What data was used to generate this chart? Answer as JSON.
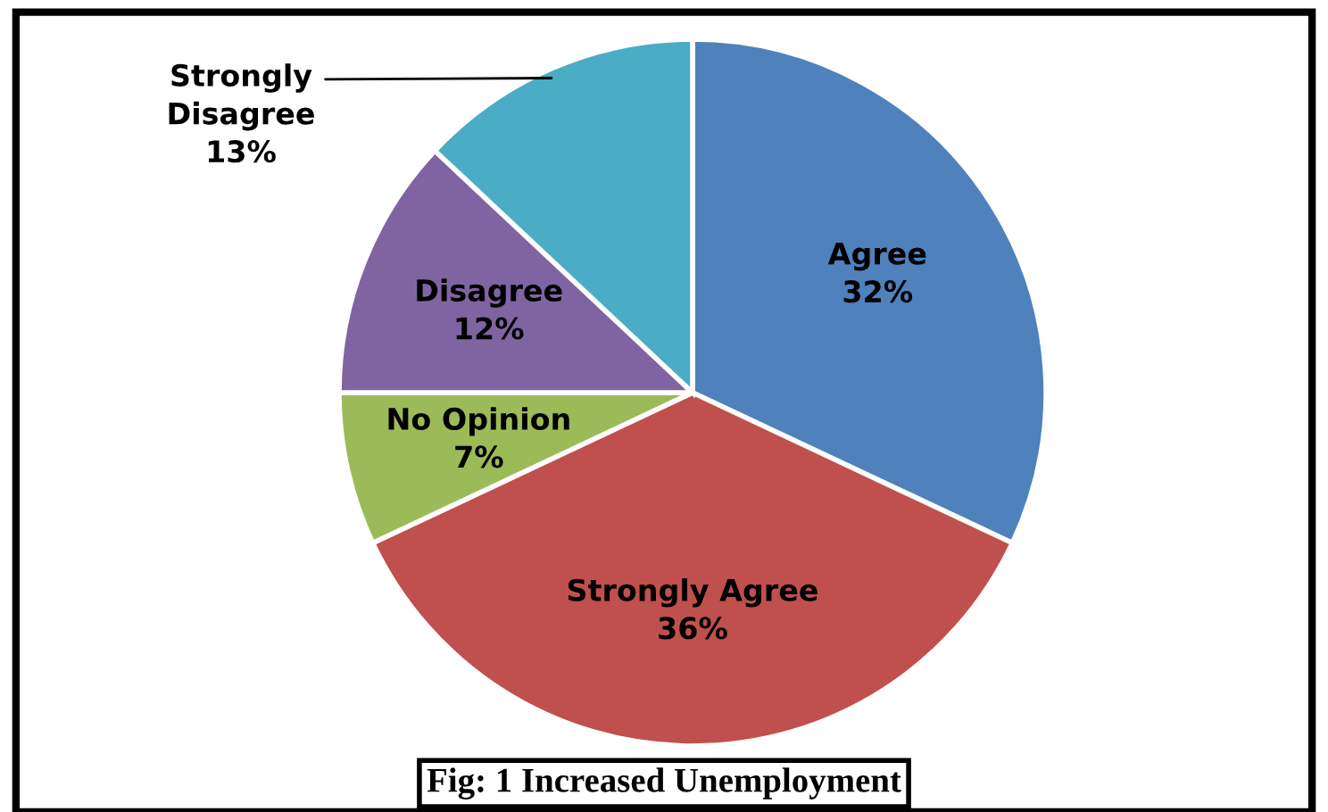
{
  "chart_data": {
    "type": "pie",
    "title": "Fig: 1 Increased Unemployment",
    "categories": [
      "Agree",
      "Strongly Agree",
      "No Opinion",
      "Disagree",
      "Strongly Disagree"
    ],
    "values": [
      32,
      36,
      7,
      12,
      13
    ],
    "value_labels": [
      "32%",
      "36%",
      "7%",
      "12%",
      "13%"
    ],
    "colors": [
      "#4f81bd",
      "#c0504d",
      "#9bbb59",
      "#8064a2",
      "#4bacc6"
    ]
  }
}
